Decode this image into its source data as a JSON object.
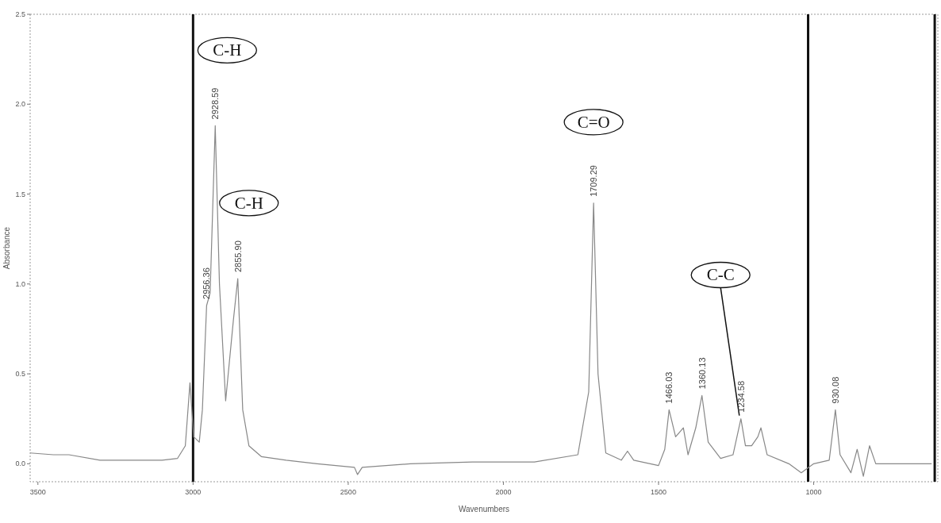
{
  "chart_data": {
    "type": "line",
    "xlabel": "Wavenumbers",
    "ylabel": "Absorbance",
    "xlim": [
      3525,
      600
    ],
    "xticks": [
      3500,
      3000,
      2500,
      2000,
      1500,
      1000
    ],
    "ylim": [
      -0.1,
      2.5
    ],
    "yticks": [
      {
        "value": 0,
        "label": "0.0"
      },
      {
        "value": 0.5,
        "label": "0.5"
      },
      {
        "value": 1,
        "label": "1.0"
      },
      {
        "value": 1.5,
        "label": "1.5"
      },
      {
        "value": 2,
        "label": "2.0"
      },
      {
        "value": 2.5,
        "label": "2.5"
      }
    ],
    "grid": false,
    "marker": "none",
    "line_style": "solid",
    "series": [
      {
        "color": "#888888",
        "x": [
          3525,
          3450,
          3400,
          3300,
          3200,
          3100,
          3050,
          3025,
          3010,
          2998,
          2980,
          2970,
          2956.36,
          2945,
          2928.59,
          2915,
          2895,
          2870,
          2855.9,
          2840,
          2820,
          2780,
          2700,
          2600,
          2480,
          2470,
          2455,
          2300,
          2100,
          1900,
          1760,
          1725,
          1709.29,
          1695,
          1670,
          1620,
          1600,
          1580,
          1500,
          1480,
          1466.03,
          1445,
          1420,
          1405,
          1380,
          1360.13,
          1340,
          1300,
          1260,
          1234.58,
          1220,
          1200,
          1180,
          1170,
          1150,
          1080,
          1040,
          1000,
          950,
          930.08,
          915,
          880,
          860,
          840,
          820,
          800,
          700,
          620
        ],
        "values": [
          0.06,
          0.05,
          0.05,
          0.02,
          0.02,
          0.02,
          0.03,
          0.1,
          0.45,
          0.15,
          0.12,
          0.3,
          0.88,
          0.95,
          1.88,
          1.0,
          0.35,
          0.8,
          1.03,
          0.3,
          0.1,
          0.04,
          0.02,
          0.0,
          -0.02,
          -0.06,
          -0.02,
          0.0,
          0.01,
          0.01,
          0.05,
          0.4,
          1.45,
          0.5,
          0.06,
          0.02,
          0.07,
          0.02,
          -0.01,
          0.08,
          0.3,
          0.15,
          0.2,
          0.05,
          0.2,
          0.38,
          0.12,
          0.03,
          0.05,
          0.25,
          0.1,
          0.1,
          0.15,
          0.2,
          0.05,
          0.0,
          -0.05,
          0.0,
          0.02,
          0.3,
          0.05,
          -0.05,
          0.08,
          -0.07,
          0.1,
          0.0,
          0.0,
          0.0
        ]
      }
    ],
    "ref_lines": [
      {
        "axis": "x",
        "value": 3000,
        "color": "#111111"
      },
      {
        "axis": "x",
        "value": 1018,
        "color": "#111111"
      },
      {
        "axis": "x",
        "value": 610,
        "color": "#111111"
      }
    ],
    "annotations": [
      {
        "text": "2956.36",
        "x": 2956.36,
        "y": 0.88
      },
      {
        "text": "2928.59",
        "x": 2928.59,
        "y": 1.88
      },
      {
        "text": "2855.90",
        "x": 2855.9,
        "y": 1.03
      },
      {
        "text": "1709.29",
        "x": 1709.29,
        "y": 1.45
      },
      {
        "text": "1466.03",
        "x": 1466.03,
        "y": 0.3
      },
      {
        "text": "1360.13",
        "x": 1360.13,
        "y": 0.38
      },
      {
        "text": "1234.58",
        "x": 1234.58,
        "y": 0.25
      },
      {
        "text": "930.08",
        "x": 930.08,
        "y": 0.3
      },
      "C-H",
      "C-H",
      "C=O",
      {
        "text": "C-C",
        "x": 1234.58,
        "y": 0.25
      }
    ]
  }
}
